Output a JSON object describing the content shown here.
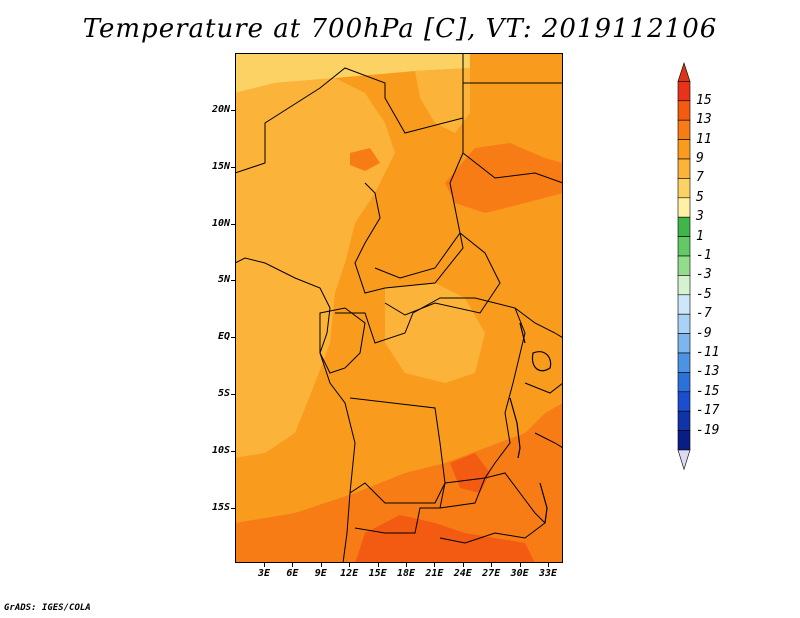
{
  "title": "Temperature at 700hPa [C], VT: 2019112106",
  "credit": "GrADS: IGES/COLA",
  "lat_labels": [
    "20N",
    "15N",
    "10N",
    "5N",
    "EQ",
    "5S",
    "10S",
    "15S"
  ],
  "lon_labels": [
    "3E",
    "6E",
    "9E",
    "12E",
    "15E",
    "18E",
    "21E",
    "24E",
    "27E",
    "30E",
    "33E"
  ],
  "colorbar": {
    "labels": [
      "15",
      "13",
      "11",
      "9",
      "7",
      "5",
      "3",
      "1",
      "-1",
      "-3",
      "-5",
      "-7",
      "-9",
      "-11",
      "-13",
      "-15",
      "-17",
      "-19"
    ],
    "colors": [
      "#e8331a",
      "#f35a12",
      "#f77c16",
      "#f99b1c",
      "#fbb33a",
      "#fdd265",
      "#fef1a6",
      "#3fb54a",
      "#63c967",
      "#93dc8a",
      "#d4f2d0",
      "#cde6f9",
      "#a9d2f6",
      "#7db5ef",
      "#4c93e6",
      "#2b71da",
      "#1a4ecf",
      "#1133a8",
      "#0a1d84"
    ],
    "arrow_top_color": "#d9371c",
    "arrow_bottom_color": "#dcd9f2"
  },
  "map_colors": {
    "c5_7": "#fdd265",
    "c7_9": "#fbb33a",
    "c9_11": "#f99b1c",
    "c11_13": "#f77c16",
    "c13_15": "#f35a12",
    "border": "#000000"
  }
}
